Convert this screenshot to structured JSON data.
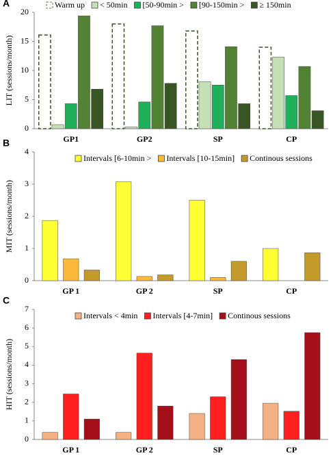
{
  "chart_data": [
    {
      "type": "bar",
      "panel": "A",
      "ylabel": "LIT (sessions/month)",
      "categories": [
        "GP1",
        "GP2",
        "SP",
        "CP"
      ],
      "ylim": [
        0,
        20
      ],
      "yticks": [
        0,
        5,
        10,
        15,
        20
      ],
      "series": [
        {
          "name": "Warm up",
          "color": "#375623",
          "dashed": true,
          "values": [
            16.1,
            18.0,
            16.8,
            14.0
          ]
        },
        {
          "name": "< 50min",
          "color": "#c5e0b4",
          "values": [
            0.7,
            0.3,
            8.1,
            12.3
          ]
        },
        {
          "name": "[50-90min >",
          "color": "#21b05a",
          "values": [
            4.3,
            4.6,
            7.5,
            5.7
          ]
        },
        {
          "name": "[90-150min >",
          "color": "#548235",
          "values": [
            19.4,
            17.7,
            14.1,
            10.7
          ]
        },
        {
          "name": "≥ 150min",
          "color": "#375623",
          "values": [
            6.8,
            7.8,
            4.3,
            3.1
          ]
        }
      ]
    },
    {
      "type": "bar",
      "panel": "B",
      "ylabel": "MIT (sessions/month)",
      "categories": [
        "GP 1",
        "GP 2",
        "SP",
        "CP"
      ],
      "ylim": [
        0,
        4
      ],
      "yticks": [
        0,
        1,
        2,
        3,
        4
      ],
      "series": [
        {
          "name": "Intervals [6-10min >",
          "color": "#ffff33",
          "values": [
            1.87,
            3.07,
            2.5,
            1.0
          ]
        },
        {
          "name": "Intervals [10-15min]",
          "color": "#fbb93a",
          "values": [
            0.68,
            0.13,
            0.1,
            0
          ]
        },
        {
          "name": "Continous sessions",
          "color": "#c49a2a",
          "values": [
            0.33,
            0.18,
            0.6,
            0.87
          ]
        }
      ]
    },
    {
      "type": "bar",
      "panel": "C",
      "ylabel": "HIT (sessions/month)",
      "categories": [
        "GP 1",
        "GP 2",
        "SP",
        "CP"
      ],
      "ylim": [
        0,
        7
      ],
      "yticks": [
        0,
        1,
        2,
        3,
        4,
        5,
        6,
        7
      ],
      "series": [
        {
          "name": "Intervals < 4min",
          "color": "#f4b183",
          "values": [
            0.38,
            0.38,
            1.4,
            1.95
          ]
        },
        {
          "name": "Intervals [4-7min]",
          "color": "#ff1f1f",
          "values": [
            2.45,
            4.65,
            2.3,
            1.52
          ]
        },
        {
          "name": "Continous sessions",
          "color": "#a50f1a",
          "values": [
            1.1,
            1.8,
            4.3,
            5.75
          ]
        }
      ]
    }
  ]
}
